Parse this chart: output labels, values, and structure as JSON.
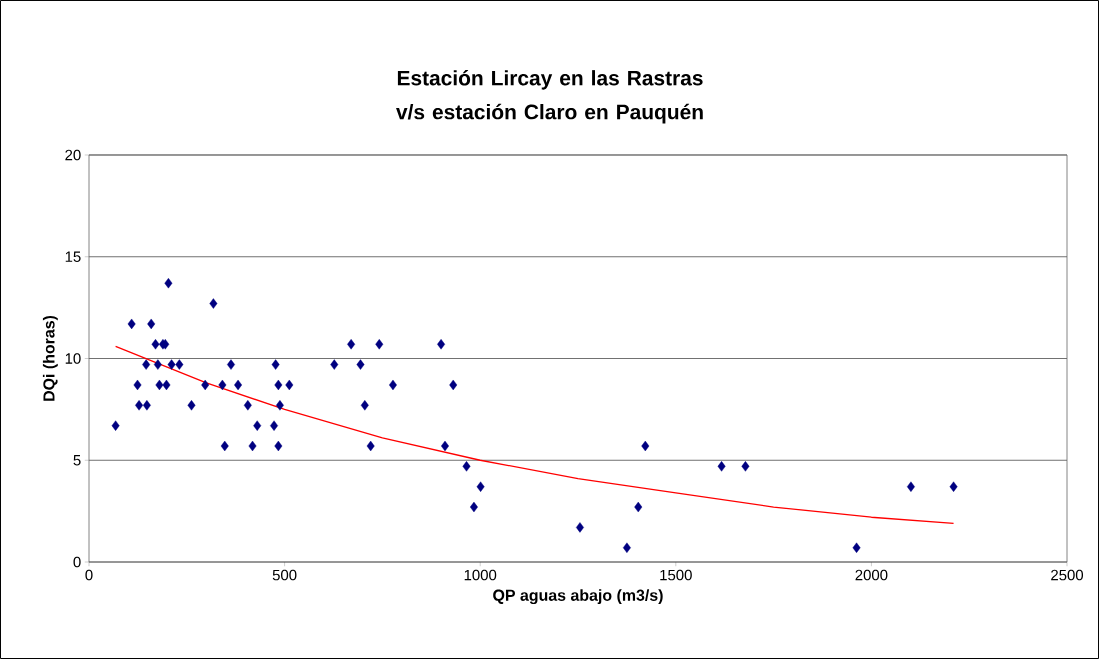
{
  "chart_data": {
    "type": "scatter",
    "title": "Estación Lircay en las Rastras v/s estación Claro en Pauquén",
    "xlabel": "QP aguas abajo (m3/s)",
    "ylabel": "DQi (horas)",
    "xlim": [
      0,
      2500
    ],
    "xticks": [
      0,
      500,
      1000,
      1500,
      2000,
      2500
    ],
    "ylim": [
      0,
      20
    ],
    "yticks": [
      0,
      5,
      10,
      15,
      20
    ],
    "grid": "y",
    "marker": "diamond",
    "series": [
      {
        "color": "#000080",
        "x": [
          68,
          109,
          159,
          203,
          318,
          170,
          189,
          195,
          146,
          176,
          211,
          231,
          124,
          180,
          198,
          128,
          148,
          262,
          297,
          341,
          363,
          381,
          406,
          430,
          473,
          347,
          418,
          484,
          477,
          484,
          512,
          488,
          627,
          670,
          694,
          742,
          705,
          720,
          777,
          900,
          931,
          910,
          965,
          1001,
          984,
          1422,
          1404,
          1617,
          1678,
          1255,
          1375,
          2101,
          2210,
          1962
        ],
        "values": [
          6.7,
          11.7,
          11.7,
          13.7,
          12.7,
          10.7,
          10.7,
          10.7,
          9.7,
          9.7,
          9.7,
          9.7,
          8.7,
          8.7,
          8.7,
          7.7,
          7.7,
          7.7,
          8.7,
          8.7,
          9.7,
          8.7,
          7.7,
          6.7,
          6.7,
          5.7,
          5.7,
          5.7,
          9.7,
          8.7,
          8.7,
          7.7,
          9.7,
          10.7,
          9.7,
          10.7,
          7.7,
          5.7,
          8.7,
          10.7,
          8.7,
          5.7,
          4.7,
          3.7,
          2.7,
          5.7,
          2.7,
          4.7,
          4.7,
          1.7,
          0.7,
          3.7,
          3.7,
          0.7
        ]
      },
      {
        "type": "line",
        "color": "#ff0000",
        "marker": "none",
        "x": [
          68,
          300,
          500,
          750,
          1000,
          1250,
          1500,
          1750,
          2000,
          2210
        ],
        "values": [
          10.6,
          8.8,
          7.5,
          6.1,
          5.0,
          4.1,
          3.4,
          2.7,
          2.2,
          1.9
        ]
      }
    ]
  }
}
